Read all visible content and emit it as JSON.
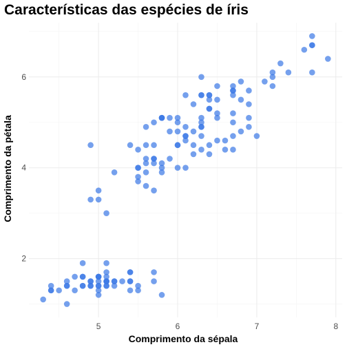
{
  "chart_data": {
    "type": "scatter",
    "title": "Características das espécies de íris",
    "xlabel": "Comprimento da sépala",
    "ylabel": "Comprimento da pétala",
    "xlim": [
      4.3,
      7.9
    ],
    "ylim": [
      1.0,
      6.9
    ],
    "x_ticks": [
      5,
      6,
      7,
      8
    ],
    "y_ticks": [
      2,
      4,
      6
    ],
    "grid": true,
    "point_color": "#3a78e6",
    "points": [
      [
        5.1,
        1.4
      ],
      [
        4.9,
        1.4
      ],
      [
        4.7,
        1.3
      ],
      [
        4.6,
        1.5
      ],
      [
        5.0,
        1.4
      ],
      [
        5.4,
        1.7
      ],
      [
        4.6,
        1.4
      ],
      [
        5.0,
        1.5
      ],
      [
        4.4,
        1.4
      ],
      [
        4.9,
        1.5
      ],
      [
        5.4,
        1.5
      ],
      [
        4.8,
        1.6
      ],
      [
        4.8,
        1.4
      ],
      [
        4.3,
        1.1
      ],
      [
        5.8,
        1.2
      ],
      [
        5.7,
        1.5
      ],
      [
        5.4,
        1.3
      ],
      [
        5.1,
        1.4
      ],
      [
        5.7,
        1.7
      ],
      [
        5.1,
        1.5
      ],
      [
        5.4,
        1.7
      ],
      [
        5.1,
        1.5
      ],
      [
        4.6,
        1.0
      ],
      [
        5.1,
        1.7
      ],
      [
        4.8,
        1.9
      ],
      [
        5.0,
        1.6
      ],
      [
        5.0,
        1.6
      ],
      [
        5.2,
        1.5
      ],
      [
        5.2,
        1.4
      ],
      [
        4.7,
        1.6
      ],
      [
        4.8,
        1.6
      ],
      [
        5.4,
        1.5
      ],
      [
        5.2,
        1.5
      ],
      [
        5.5,
        1.4
      ],
      [
        4.9,
        1.5
      ],
      [
        5.0,
        1.2
      ],
      [
        5.5,
        1.3
      ],
      [
        4.9,
        1.4
      ],
      [
        4.4,
        1.3
      ],
      [
        5.1,
        1.5
      ],
      [
        5.0,
        1.3
      ],
      [
        4.5,
        1.3
      ],
      [
        4.4,
        1.3
      ],
      [
        5.0,
        1.6
      ],
      [
        5.1,
        1.9
      ],
      [
        4.8,
        1.4
      ],
      [
        5.1,
        1.6
      ],
      [
        4.6,
        1.4
      ],
      [
        5.3,
        1.5
      ],
      [
        5.0,
        1.4
      ],
      [
        7.0,
        4.7
      ],
      [
        6.4,
        4.5
      ],
      [
        6.9,
        4.9
      ],
      [
        5.5,
        4.0
      ],
      [
        6.5,
        4.6
      ],
      [
        5.7,
        4.5
      ],
      [
        6.3,
        4.7
      ],
      [
        4.9,
        3.3
      ],
      [
        6.6,
        4.6
      ],
      [
        5.2,
        3.9
      ],
      [
        5.0,
        3.5
      ],
      [
        5.9,
        4.2
      ],
      [
        6.0,
        4.0
      ],
      [
        6.1,
        4.7
      ],
      [
        5.6,
        3.6
      ],
      [
        6.7,
        4.4
      ],
      [
        5.6,
        4.5
      ],
      [
        5.8,
        4.1
      ],
      [
        6.2,
        4.5
      ],
      [
        5.6,
        3.9
      ],
      [
        5.9,
        4.8
      ],
      [
        6.1,
        4.0
      ],
      [
        6.3,
        4.9
      ],
      [
        6.1,
        4.7
      ],
      [
        6.4,
        4.3
      ],
      [
        6.6,
        4.4
      ],
      [
        6.8,
        4.8
      ],
      [
        6.7,
        5.0
      ],
      [
        6.0,
        4.5
      ],
      [
        5.7,
        3.5
      ],
      [
        5.5,
        3.8
      ],
      [
        5.5,
        3.7
      ],
      [
        5.8,
        3.9
      ],
      [
        6.0,
        5.1
      ],
      [
        5.4,
        4.5
      ],
      [
        6.0,
        4.5
      ],
      [
        6.7,
        4.7
      ],
      [
        6.3,
        4.4
      ],
      [
        5.6,
        4.1
      ],
      [
        5.5,
        4.0
      ],
      [
        5.5,
        4.4
      ],
      [
        6.1,
        4.6
      ],
      [
        5.8,
        4.0
      ],
      [
        5.0,
        3.3
      ],
      [
        5.6,
        4.2
      ],
      [
        5.7,
        4.2
      ],
      [
        5.7,
        4.2
      ],
      [
        6.2,
        4.3
      ],
      [
        5.1,
        3.0
      ],
      [
        5.7,
        4.1
      ],
      [
        6.3,
        6.0
      ],
      [
        5.8,
        5.1
      ],
      [
        7.1,
        5.9
      ],
      [
        6.3,
        5.6
      ],
      [
        6.5,
        5.8
      ],
      [
        7.6,
        6.6
      ],
      [
        4.9,
        4.5
      ],
      [
        7.3,
        6.3
      ],
      [
        6.7,
        5.8
      ],
      [
        7.2,
        6.1
      ],
      [
        6.5,
        5.1
      ],
      [
        6.4,
        5.3
      ],
      [
        6.8,
        5.5
      ],
      [
        5.7,
        5.0
      ],
      [
        5.8,
        5.1
      ],
      [
        6.4,
        5.3
      ],
      [
        6.5,
        5.5
      ],
      [
        7.7,
        6.7
      ],
      [
        7.7,
        6.9
      ],
      [
        6.0,
        5.0
      ],
      [
        6.9,
        5.7
      ],
      [
        5.6,
        4.9
      ],
      [
        7.7,
        6.7
      ],
      [
        6.3,
        4.9
      ],
      [
        6.7,
        5.7
      ],
      [
        7.2,
        6.0
      ],
      [
        6.2,
        4.8
      ],
      [
        6.1,
        4.9
      ],
      [
        6.4,
        5.6
      ],
      [
        7.2,
        5.8
      ],
      [
        7.4,
        6.1
      ],
      [
        7.9,
        6.4
      ],
      [
        6.4,
        5.6
      ],
      [
        6.3,
        5.1
      ],
      [
        6.1,
        5.6
      ],
      [
        7.7,
        6.1
      ],
      [
        6.3,
        5.6
      ],
      [
        6.4,
        5.5
      ],
      [
        6.0,
        4.8
      ],
      [
        6.9,
        5.4
      ],
      [
        6.7,
        5.6
      ],
      [
        6.9,
        5.1
      ],
      [
        5.8,
        5.1
      ],
      [
        6.8,
        5.9
      ],
      [
        6.7,
        5.7
      ],
      [
        6.7,
        5.2
      ],
      [
        6.3,
        5.0
      ],
      [
        6.5,
        5.2
      ],
      [
        6.2,
        5.4
      ],
      [
        5.9,
        5.1
      ]
    ]
  }
}
